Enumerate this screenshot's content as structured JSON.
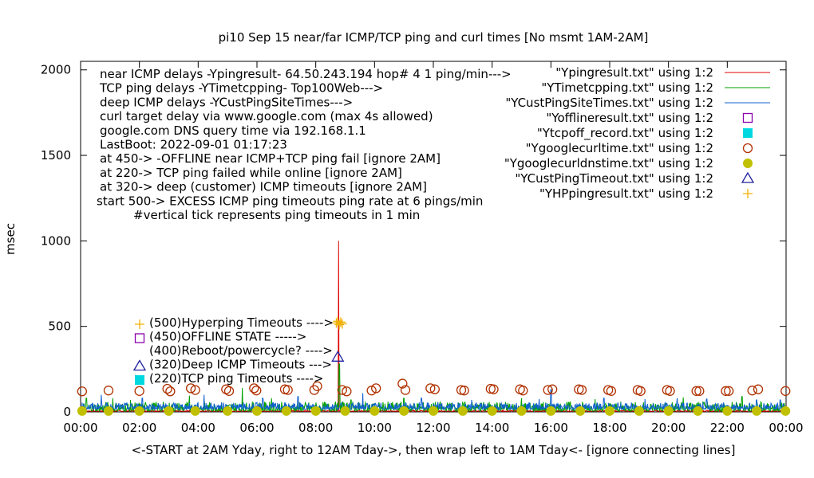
{
  "chart_data": {
    "type": "line",
    "title": "pi10 Sep 15  near/far ICMP/TCP ping and curl times [No msmt 1AM-2AM]",
    "ylabel": "msec",
    "xlabel": "<-START at 2AM Yday, right to 12AM Tday->, then wrap left to 1AM Tday<- [ignore connecting lines]",
    "ylim": [
      0,
      2050
    ],
    "xlim": [
      0,
      24
    ],
    "y_ticks": [
      0,
      500,
      1000,
      1500,
      2000
    ],
    "x_ticks": [
      "00:00",
      "02:00",
      "04:00",
      "06:00",
      "08:00",
      "10:00",
      "12:00",
      "14:00",
      "16:00",
      "18:00",
      "20:00",
      "22:00",
      "00:00"
    ],
    "grid": false,
    "legend_position": "top-right",
    "info_lines": [
      "near ICMP delays -Ypingresult- 64.50.243.194 hop# 4 1 ping/min--->",
      "TCP ping delays -YTimetcpping- Top100Web--->",
      "deep ICMP delays -YCustPingSiteTimes--->",
      "curl target delay via www.google.com (max 4s allowed)",
      "google.com DNS query time via 192.168.1.1",
      "LastBoot: 2022-09-01 01:17:23",
      "at 450-> -OFFLINE near ICMP+TCP ping fail [ignore 2AM]",
      "at 220-> TCP ping failed while online [ignore 2AM]",
      "at 320-> deep (customer) ICMP timeouts [ignore 2AM]",
      "start 500-> EXCESS ICMP ping timeouts ping rate at 6 pings/min",
      "#vertical tick represents ping timeouts in 1 min"
    ],
    "annotations": [
      {
        "text": "(500)Hyperping Timeouts ---->",
        "y": 500,
        "marker": "plus"
      },
      {
        "text": "(450)OFFLINE STATE ----->",
        "y": 450,
        "marker": "open-square"
      },
      {
        "text": "(400)Reboot/powercycle? ---->",
        "y": 400,
        "marker": "none"
      },
      {
        "text": "(320)Deep ICMP Timeouts --->",
        "y": 320,
        "marker": "open-triangle"
      },
      {
        "text": "(220)TCP ping Timeouts ---->",
        "y": 220,
        "marker": "filled-square"
      }
    ],
    "series": [
      {
        "name": "\"Ypingresult.txt\" using 1:2",
        "color": "#e00000",
        "style": "line",
        "spike": {
          "x": 8.78,
          "y": 1000
        },
        "typical": [
          3,
          10
        ]
      },
      {
        "name": "\"YTimetcpping.txt\" using 1:2",
        "color": "#00a000",
        "style": "line",
        "typical": [
          5,
          60
        ],
        "spikes": [
          [
            0.2,
            80
          ],
          [
            1.1,
            80
          ],
          [
            1.7,
            70
          ],
          [
            3.7,
            95
          ],
          [
            5.5,
            140
          ],
          [
            6.5,
            80
          ],
          [
            8.8,
            280
          ],
          [
            9.2,
            70
          ],
          [
            11.0,
            80
          ],
          [
            15.0,
            80
          ],
          [
            17.5,
            75
          ],
          [
            20.5,
            85
          ],
          [
            22.5,
            90
          ]
        ]
      },
      {
        "name": "\"YCustPingSiteTimes.txt\" using 1:2",
        "color": "#1060d0",
        "style": "line",
        "typical": [
          15,
          55
        ],
        "spikes": [
          [
            0.7,
            100
          ],
          [
            2.1,
            80
          ],
          [
            4.2,
            100
          ],
          [
            6.2,
            80
          ],
          [
            7.4,
            90
          ],
          [
            9.6,
            110
          ],
          [
            11.6,
            80
          ],
          [
            13.3,
            70
          ],
          [
            15.6,
            75
          ],
          [
            16.0,
            130
          ],
          [
            17.8,
            80
          ],
          [
            19.2,
            75
          ],
          [
            20.3,
            80
          ],
          [
            21.3,
            75
          ],
          [
            23.0,
            70
          ],
          [
            23.8,
            70
          ]
        ]
      },
      {
        "name": "\"Yofflineresult.txt\" using 1:2",
        "color": "#8b00b0",
        "style": "open-square",
        "points": []
      },
      {
        "name": "\"Ytcpoff_record.txt\" using 1:2",
        "color": "#00d8e0",
        "style": "filled-square",
        "points": []
      },
      {
        "name": "\"Ygooglecurltime.txt\" using 1:2",
        "color": "#b03000",
        "style": "open-circle",
        "points": [
          [
            0.05,
            120
          ],
          [
            0.95,
            125
          ],
          [
            2.0,
            122
          ],
          [
            2.95,
            135
          ],
          [
            3.05,
            120
          ],
          [
            3.75,
            138
          ],
          [
            3.9,
            128
          ],
          [
            4.95,
            132
          ],
          [
            5.05,
            122
          ],
          [
            5.9,
            138
          ],
          [
            5.98,
            125
          ],
          [
            6.95,
            132
          ],
          [
            7.05,
            128
          ],
          [
            7.95,
            128
          ],
          [
            8.05,
            150
          ],
          [
            8.9,
            128
          ],
          [
            9.05,
            120
          ],
          [
            9.9,
            125
          ],
          [
            10.05,
            138
          ],
          [
            10.95,
            165
          ],
          [
            11.05,
            128
          ],
          [
            11.9,
            138
          ],
          [
            12.05,
            132
          ],
          [
            12.95,
            128
          ],
          [
            13.05,
            125
          ],
          [
            13.95,
            135
          ],
          [
            14.05,
            132
          ],
          [
            14.95,
            132
          ],
          [
            15.05,
            125
          ],
          [
            15.9,
            128
          ],
          [
            16.05,
            132
          ],
          [
            16.95,
            132
          ],
          [
            17.05,
            128
          ],
          [
            17.95,
            128
          ],
          [
            18.05,
            122
          ],
          [
            18.95,
            128
          ],
          [
            19.05,
            122
          ],
          [
            19.95,
            128
          ],
          [
            20.05,
            122
          ],
          [
            20.95,
            122
          ],
          [
            21.05,
            122
          ],
          [
            21.95,
            122
          ],
          [
            22.05,
            122
          ],
          [
            22.85,
            125
          ],
          [
            23.05,
            132
          ],
          [
            23.98,
            122
          ]
        ]
      },
      {
        "name": "\"Ygooglecurldnstime.txt\" using 1:2",
        "color": "#c0c000",
        "style": "filled-circle",
        "points": [
          [
            0.05,
            5
          ],
          [
            0.95,
            5
          ],
          [
            2.0,
            5
          ],
          [
            3.0,
            5
          ],
          [
            3.9,
            5
          ],
          [
            5.0,
            5
          ],
          [
            6.0,
            5
          ],
          [
            7.0,
            5
          ],
          [
            8.0,
            5
          ],
          [
            9.0,
            5
          ],
          [
            10.0,
            5
          ],
          [
            11.0,
            5
          ],
          [
            12.0,
            5
          ],
          [
            13.0,
            5
          ],
          [
            14.0,
            5
          ],
          [
            15.0,
            5
          ],
          [
            16.0,
            5
          ],
          [
            17.0,
            5
          ],
          [
            18.0,
            5
          ],
          [
            19.0,
            5
          ],
          [
            20.0,
            5
          ],
          [
            21.0,
            5
          ],
          [
            22.0,
            5
          ],
          [
            23.0,
            5
          ],
          [
            23.98,
            5
          ]
        ]
      },
      {
        "name": "\"YCustPingTimeout.txt\" using 1:2",
        "color": "#2020a0",
        "style": "open-triangle",
        "points": [
          [
            8.75,
            320
          ]
        ]
      },
      {
        "name": "\"YHPpingresult.txt\" using 1:2",
        "color": "#f0b000",
        "style": "plus",
        "points": [
          [
            8.7,
            520
          ],
          [
            8.75,
            530
          ],
          [
            8.8,
            510
          ],
          [
            8.85,
            525
          ],
          [
            8.9,
            515
          ]
        ]
      }
    ]
  }
}
